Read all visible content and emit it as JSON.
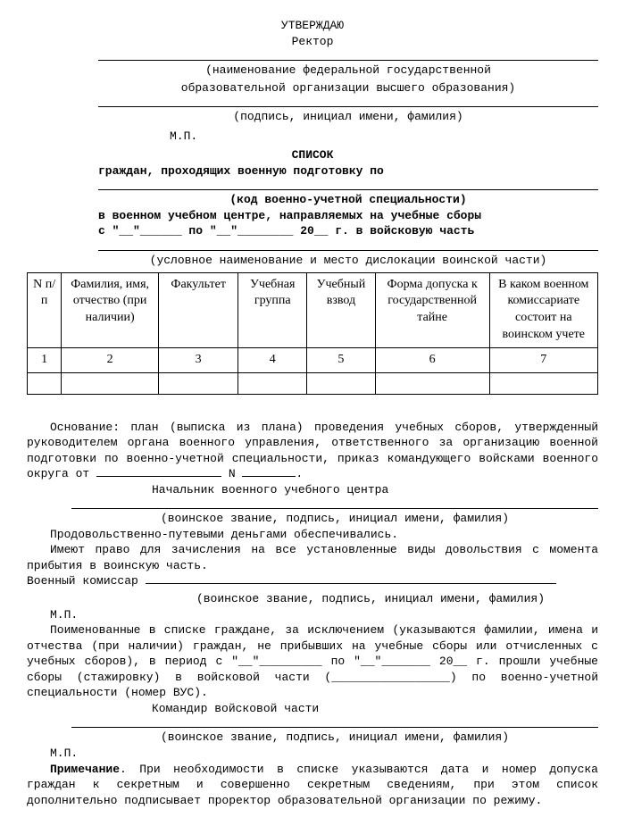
{
  "approve": {
    "word": "УТВЕРЖДАЮ",
    "role": "Ректор",
    "sub1": "(наименование федеральной государственной",
    "sub1b": "образовательной организации высшего образования)",
    "sub2": "(подпись, инициал имени, фамилия)",
    "mp": "М.П."
  },
  "title": {
    "word": "СПИСОК",
    "line1": "граждан, проходящих военную подготовку по",
    "sub1": "(код военно-учетной специальности)",
    "line2": "в военном учебном центре, направляемых на учебные сборы",
    "date_prefix": "с \"__\"______",
    "date_mid": " по \"__\"________ 20__ г. в войсковую часть",
    "sub2": "(условное наименование и место дислокации воинской части)"
  },
  "table": {
    "columns": [
      "N п/п",
      "Фамилия, имя, отчество (при наличии)",
      "Факультет",
      "Учебная группа",
      "Учебный взвод",
      "Форма допуска к государственной тайне",
      "В каком военном комиссариате состоит на воинском учете"
    ],
    "nums": [
      "1",
      "2",
      "3",
      "4",
      "5",
      "6",
      "7"
    ],
    "col_widths": [
      "6%",
      "17%",
      "14%",
      "12%",
      "12%",
      "20%",
      "19%"
    ]
  },
  "body": {
    "para1a": "Основание: план (выписка из плана) проведения учебных сборов, утвержденный руководителем органа военного управления, ответственного за организацию военной подготовки по военно-учетной специальности, приказ командующего войсками военного округа от ",
    "para1b": " N ",
    "para1c": ".",
    "chief": "Начальник военного учебного центра",
    "sub_sig": "(воинское звание, подпись, инициал имени, фамилия)",
    "prod": "Продовольственно-путевыми деньгами обеспечивались.",
    "right_line": "Имеют право для зачисления на все установленные виды довольствия с момента прибытия в воинскую часть.",
    "komissar": "Военный комиссар ",
    "mp": "М.П.",
    "para2": "Поименованные в списке граждане, за исключением (указываются фамилии, имена и отчества (при наличии) граждан, не прибывших на учебные сборы или отчисленных с учебных сборов), в период с \"__\"_________ по \"__\"_______ 20__ г. прошли учебные сборы (стажировку) в войсковой части (_________________) по военно-учетной специальности (номер ВУС).",
    "commander": "Командир войсковой части",
    "note_label": "Примечание",
    "note": ". При необходимости в списке указываются дата и номер допуска граждан к секретным и совершенно секретным сведениям, при этом список дополнительно подписывает проректор образовательной организации по режиму."
  }
}
